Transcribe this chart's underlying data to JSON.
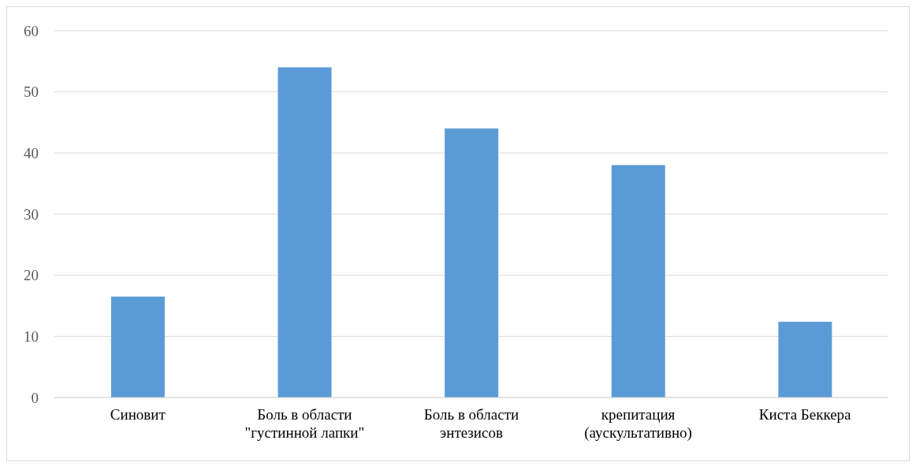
{
  "chart_data": {
    "type": "bar",
    "categories": [
      "Синовит",
      "Боль в области \"густинной лапки\"",
      "Боль в области энтезисов",
      "крепитация (аускультативно)",
      "Киста Беккера"
    ],
    "values": [
      16.5,
      54,
      44,
      38,
      12.4
    ],
    "color": "#5b9bd5",
    "ylim": [
      0,
      60
    ],
    "yticks": [
      0,
      10,
      20,
      30,
      40,
      50,
      60
    ],
    "grid": "y",
    "legend": false
  }
}
